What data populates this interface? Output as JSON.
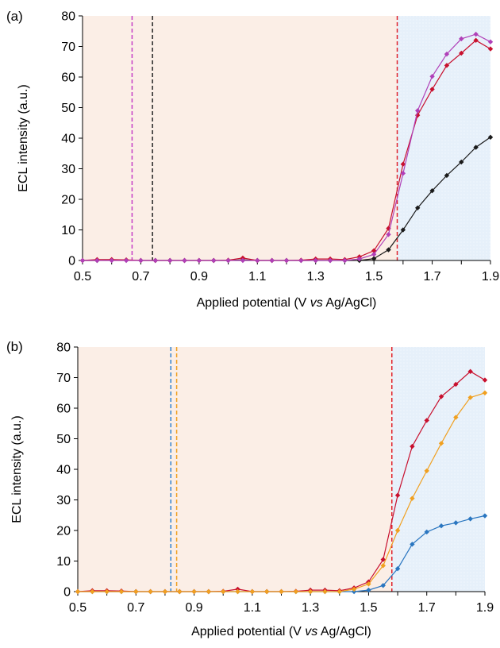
{
  "chart_data": [
    {
      "type": "line",
      "panel_label": "(a)",
      "xlabel_parts": [
        "Applied potential (V ",
        "vs",
        " Ag/AgCl)"
      ],
      "ylabel": "ECL intensity (a.u.)",
      "xlim": [
        0.5,
        1.9
      ],
      "ylim": [
        0,
        80
      ],
      "xticks": [
        "0.5",
        "0.7",
        "0.9",
        "1.1",
        "1.3",
        "1.5",
        "1.7",
        "1.9"
      ],
      "yticks": [
        "0",
        "10",
        "20",
        "30",
        "40",
        "50",
        "60",
        "70",
        "80"
      ],
      "grid": false,
      "legend": false,
      "shaded_regions": [
        {
          "x0": 0.5,
          "x1": 1.58,
          "color": "#fbeee6"
        },
        {
          "x0": 1.58,
          "x1": 1.9,
          "color": "#e6f0fa"
        }
      ],
      "vlines": [
        {
          "x": 0.67,
          "color": "#c63ec6"
        },
        {
          "x": 0.74,
          "color": "#222222"
        },
        {
          "x": 1.58,
          "color": "#e0202a"
        }
      ],
      "x": [
        0.5,
        0.55,
        0.6,
        0.65,
        0.7,
        0.75,
        0.8,
        0.85,
        0.9,
        0.95,
        1.0,
        1.05,
        1.1,
        1.15,
        1.2,
        1.25,
        1.3,
        1.35,
        1.4,
        1.45,
        1.5,
        1.55,
        1.6,
        1.65,
        1.7,
        1.75,
        1.8,
        1.85,
        1.9
      ],
      "series": [
        {
          "color": "#1a1a1a",
          "values": [
            0,
            0,
            0.2,
            0.1,
            0,
            0,
            0,
            0,
            0,
            0,
            0,
            0.2,
            0,
            0,
            0,
            0,
            0,
            0,
            0,
            0,
            0.6,
            3.5,
            10,
            17.2,
            22.8,
            27.8,
            32.2,
            37,
            40.3
          ]
        },
        {
          "color": "#c8102e",
          "values": [
            0,
            0.3,
            0.3,
            0.2,
            0,
            0,
            0,
            0,
            0,
            0,
            0.1,
            0.8,
            0,
            0,
            0,
            0.1,
            0.5,
            0.5,
            0.3,
            1.2,
            3.2,
            10.5,
            31.5,
            47.5,
            56,
            63.8,
            67.8,
            72,
            69.2
          ]
        },
        {
          "color": "#b040b8",
          "values": [
            0,
            0,
            0,
            0,
            0,
            0,
            0,
            0,
            0,
            0,
            0,
            0,
            0,
            0,
            0,
            0,
            0,
            0,
            0,
            0.5,
            2,
            8.5,
            28.5,
            49,
            60.2,
            67.5,
            72.5,
            74,
            71.5
          ]
        }
      ]
    },
    {
      "type": "line",
      "panel_label": "(b)",
      "xlabel_parts": [
        "Applied potential (V ",
        "vs",
        " Ag/AgCl)"
      ],
      "ylabel": "ECL intensity (a.u.)",
      "xlim": [
        0.5,
        1.9
      ],
      "ylim": [
        0,
        80
      ],
      "xticks": [
        "0.5",
        "0.7",
        "0.9",
        "1.1",
        "1.3",
        "1.5",
        "1.7",
        "1.9"
      ],
      "yticks": [
        "0",
        "10",
        "20",
        "30",
        "40",
        "50",
        "60",
        "70",
        "80"
      ],
      "grid": false,
      "legend": false,
      "shaded_regions": [
        {
          "x0": 0.5,
          "x1": 1.58,
          "color": "#fbeee6"
        },
        {
          "x0": 1.58,
          "x1": 1.9,
          "color": "#e6f0fa"
        }
      ],
      "vlines": [
        {
          "x": 0.82,
          "color": "#2f80d0"
        },
        {
          "x": 0.84,
          "color": "#f0a020"
        },
        {
          "x": 1.58,
          "color": "#e0202a"
        }
      ],
      "x": [
        0.5,
        0.55,
        0.6,
        0.65,
        0.7,
        0.75,
        0.8,
        0.85,
        0.9,
        0.95,
        1.0,
        1.05,
        1.1,
        1.15,
        1.2,
        1.25,
        1.3,
        1.35,
        1.4,
        1.45,
        1.5,
        1.55,
        1.6,
        1.65,
        1.7,
        1.75,
        1.8,
        1.85,
        1.9
      ],
      "series": [
        {
          "color": "#2a76c0",
          "values": [
            0,
            0,
            0,
            0,
            0,
            0,
            0,
            0,
            0,
            0,
            0,
            0,
            0,
            0,
            0,
            0,
            0,
            0,
            0,
            0,
            0.5,
            2,
            7.5,
            15.5,
            19.5,
            21.5,
            22.5,
            23.8,
            24.8
          ]
        },
        {
          "color": "#c8102e",
          "values": [
            0,
            0.3,
            0.3,
            0.2,
            0,
            0,
            0,
            0,
            0,
            0,
            0.1,
            0.8,
            0,
            0,
            0,
            0.1,
            0.5,
            0.5,
            0.3,
            1.2,
            3.2,
            10.5,
            31.5,
            47.5,
            56,
            63.8,
            67.8,
            72,
            69.2
          ]
        },
        {
          "color": "#f0a020",
          "values": [
            0,
            0,
            0,
            0,
            0,
            0,
            0,
            0,
            0,
            0,
            0,
            0,
            0,
            0,
            0,
            0,
            0,
            0,
            0,
            0.8,
            2.5,
            8.5,
            20,
            30.5,
            39.5,
            48.5,
            57,
            63.5,
            65
          ]
        }
      ]
    }
  ]
}
